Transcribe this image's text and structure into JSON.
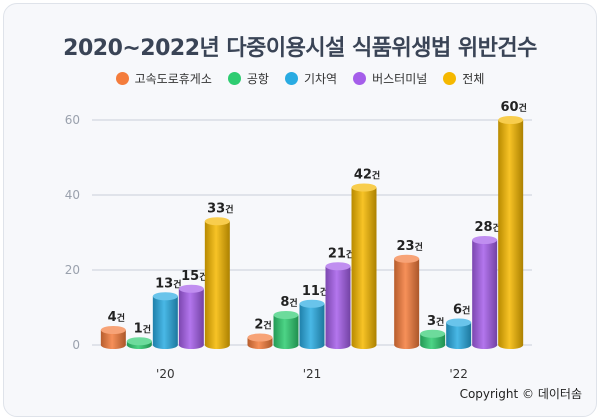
{
  "title": "2020~2022년 다중이용시설 식품위생법 위반건수",
  "copyright": "Copyright © 데이터솜",
  "unit_suffix": "건",
  "chart_data": {
    "type": "bar",
    "title": "2020~2022년 다중이용시설 식품위생법 위반건수",
    "categories": [
      "'20",
      "'21",
      "'22"
    ],
    "series": [
      {
        "name": "고속도로휴게소",
        "color": "#f47c3c",
        "values": [
          4,
          2,
          23
        ]
      },
      {
        "name": "공항",
        "color": "#2ecc71",
        "values": [
          1,
          8,
          3
        ]
      },
      {
        "name": "기차역",
        "color": "#29abe2",
        "values": [
          13,
          11,
          6
        ]
      },
      {
        "name": "버스터미널",
        "color": "#a55eea",
        "values": [
          15,
          21,
          28
        ]
      },
      {
        "name": "전체",
        "color": "#f5b800",
        "values": [
          33,
          42,
          60
        ]
      }
    ],
    "ylim": [
      0,
      60
    ],
    "yticks": [
      0,
      20,
      40,
      60
    ],
    "grid": true,
    "legend": "top"
  }
}
